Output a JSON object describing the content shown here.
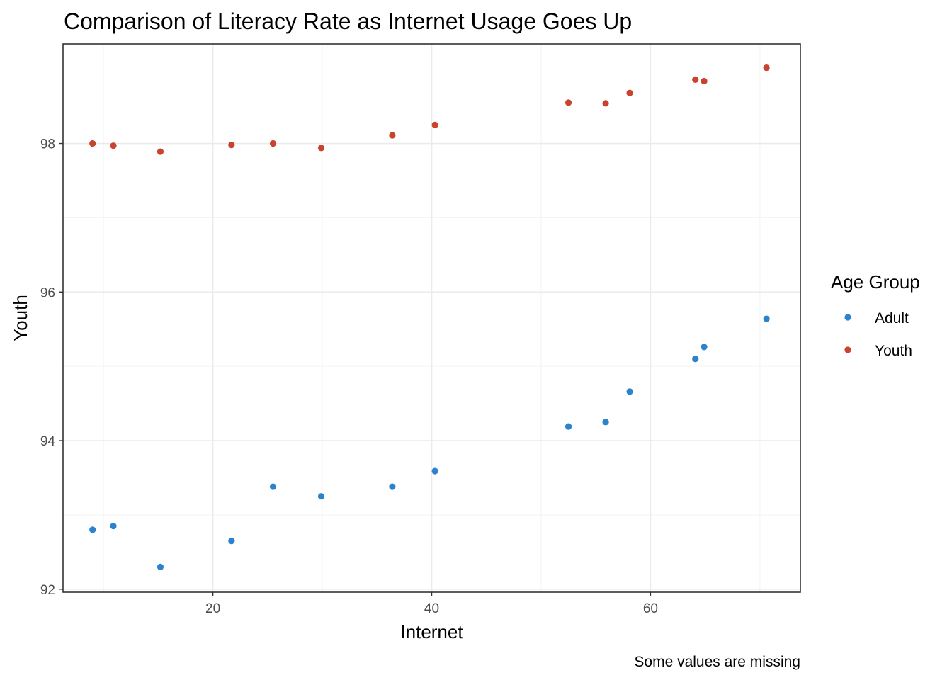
{
  "chart_data": {
    "type": "scatter",
    "title": "Comparison of Literacy Rate as Internet Usage Goes Up",
    "xlabel": "Internet",
    "ylabel": "Youth",
    "caption": "Some values are missing",
    "xlim": [
      6.3,
      73.7
    ],
    "ylim": [
      91.96,
      99.34
    ],
    "x_ticks": [
      20,
      40,
      60
    ],
    "x_tick_labels": [
      "20",
      "40",
      "60"
    ],
    "y_ticks": [
      92,
      94,
      96,
      98
    ],
    "y_tick_labels": [
      "92",
      "94",
      "96",
      "98"
    ],
    "grid": true,
    "legend": {
      "title": "Age Group",
      "placement": "right"
    },
    "series": [
      {
        "name": "Adult",
        "color": "#2b83cd",
        "points": [
          {
            "x": 9.0,
            "y": 92.8
          },
          {
            "x": 10.9,
            "y": 92.85
          },
          {
            "x": 15.2,
            "y": 92.3
          },
          {
            "x": 21.7,
            "y": 92.65
          },
          {
            "x": 25.5,
            "y": 93.38
          },
          {
            "x": 29.9,
            "y": 93.25
          },
          {
            "x": 36.4,
            "y": 93.38
          },
          {
            "x": 40.3,
            "y": 93.59
          },
          {
            "x": 52.5,
            "y": 94.19
          },
          {
            "x": 55.9,
            "y": 94.25
          },
          {
            "x": 58.1,
            "y": 94.66
          },
          {
            "x": 64.1,
            "y": 95.1
          },
          {
            "x": 64.9,
            "y": 95.26
          },
          {
            "x": 70.6,
            "y": 95.64
          }
        ]
      },
      {
        "name": "Youth",
        "color": "#c9432e",
        "points": [
          {
            "x": 9.0,
            "y": 98.0
          },
          {
            "x": 10.9,
            "y": 97.97
          },
          {
            "x": 15.2,
            "y": 97.89
          },
          {
            "x": 21.7,
            "y": 97.98
          },
          {
            "x": 25.5,
            "y": 98.0
          },
          {
            "x": 29.9,
            "y": 97.94
          },
          {
            "x": 36.4,
            "y": 98.11
          },
          {
            "x": 40.3,
            "y": 98.25
          },
          {
            "x": 52.5,
            "y": 98.55
          },
          {
            "x": 55.9,
            "y": 98.54
          },
          {
            "x": 58.1,
            "y": 98.68
          },
          {
            "x": 64.1,
            "y": 98.86
          },
          {
            "x": 64.9,
            "y": 98.84
          },
          {
            "x": 70.6,
            "y": 99.02
          }
        ]
      }
    ]
  }
}
